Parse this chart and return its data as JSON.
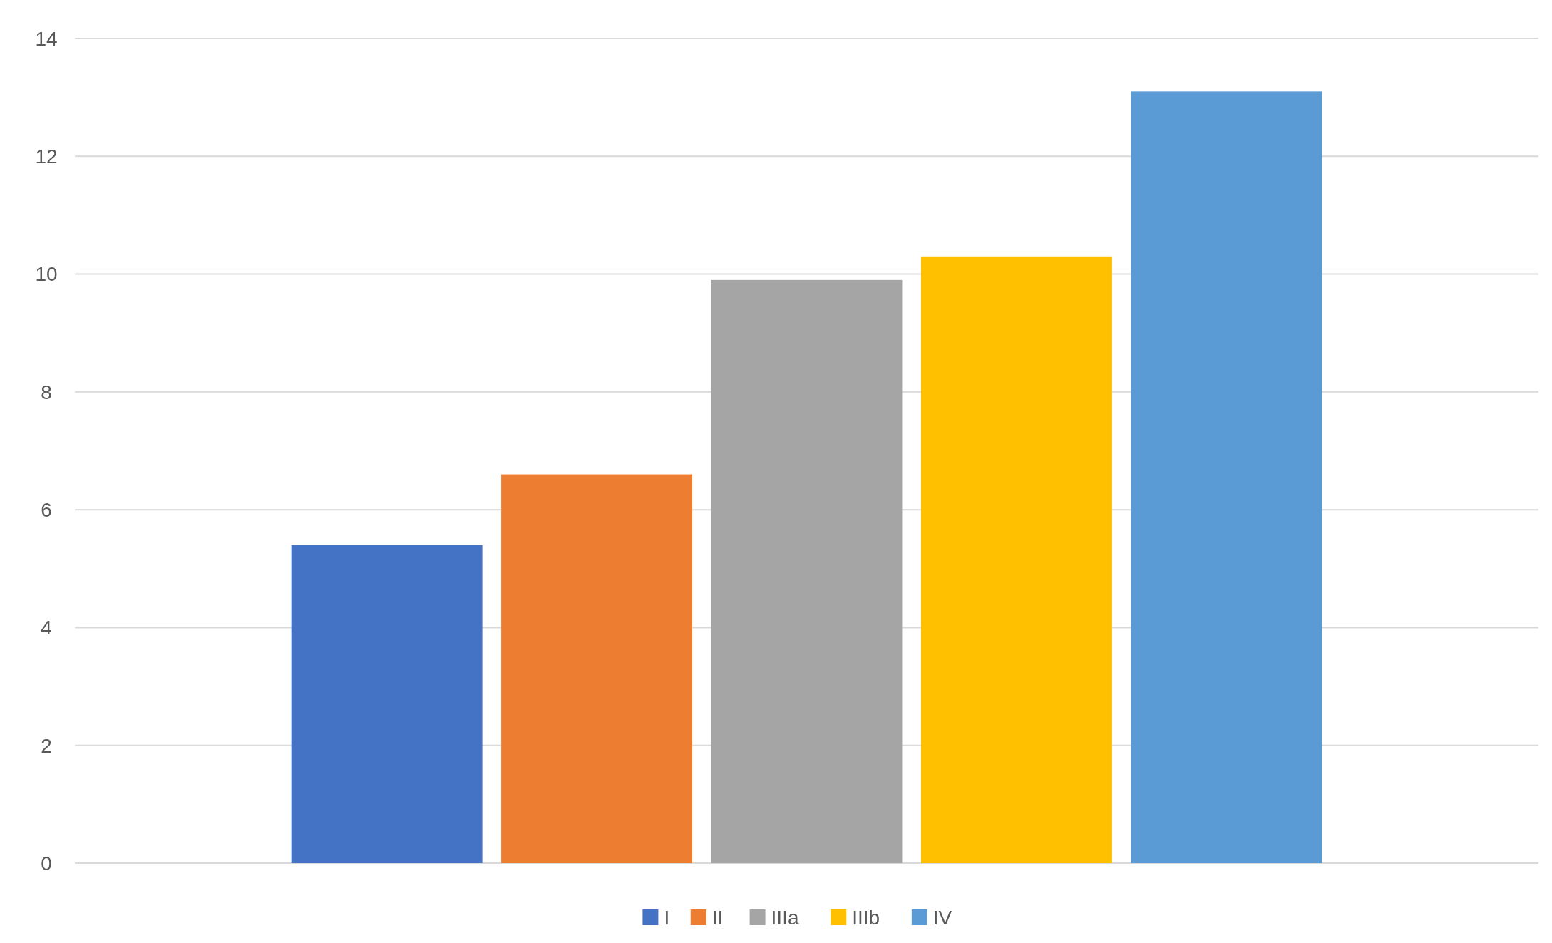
{
  "chart_data": {
    "type": "bar",
    "categories": [
      null
    ],
    "series": [
      {
        "name": "I",
        "color": "#4472c4",
        "values": [
          5.4
        ]
      },
      {
        "name": "II",
        "color": "#ed7d31",
        "values": [
          6.6
        ]
      },
      {
        "name": "IIIa",
        "color": "#a5a5a5",
        "values": [
          9.9
        ]
      },
      {
        "name": "IIIb",
        "color": "#ffc000",
        "values": [
          10.3
        ]
      },
      {
        "name": "IV",
        "color": "#5b9bd5",
        "values": [
          13.1
        ]
      }
    ],
    "ylim": [
      0,
      14
    ],
    "yticks": [
      0,
      2,
      4,
      6,
      8,
      10,
      12,
      14
    ],
    "grid": "y",
    "legend": "bottom"
  }
}
